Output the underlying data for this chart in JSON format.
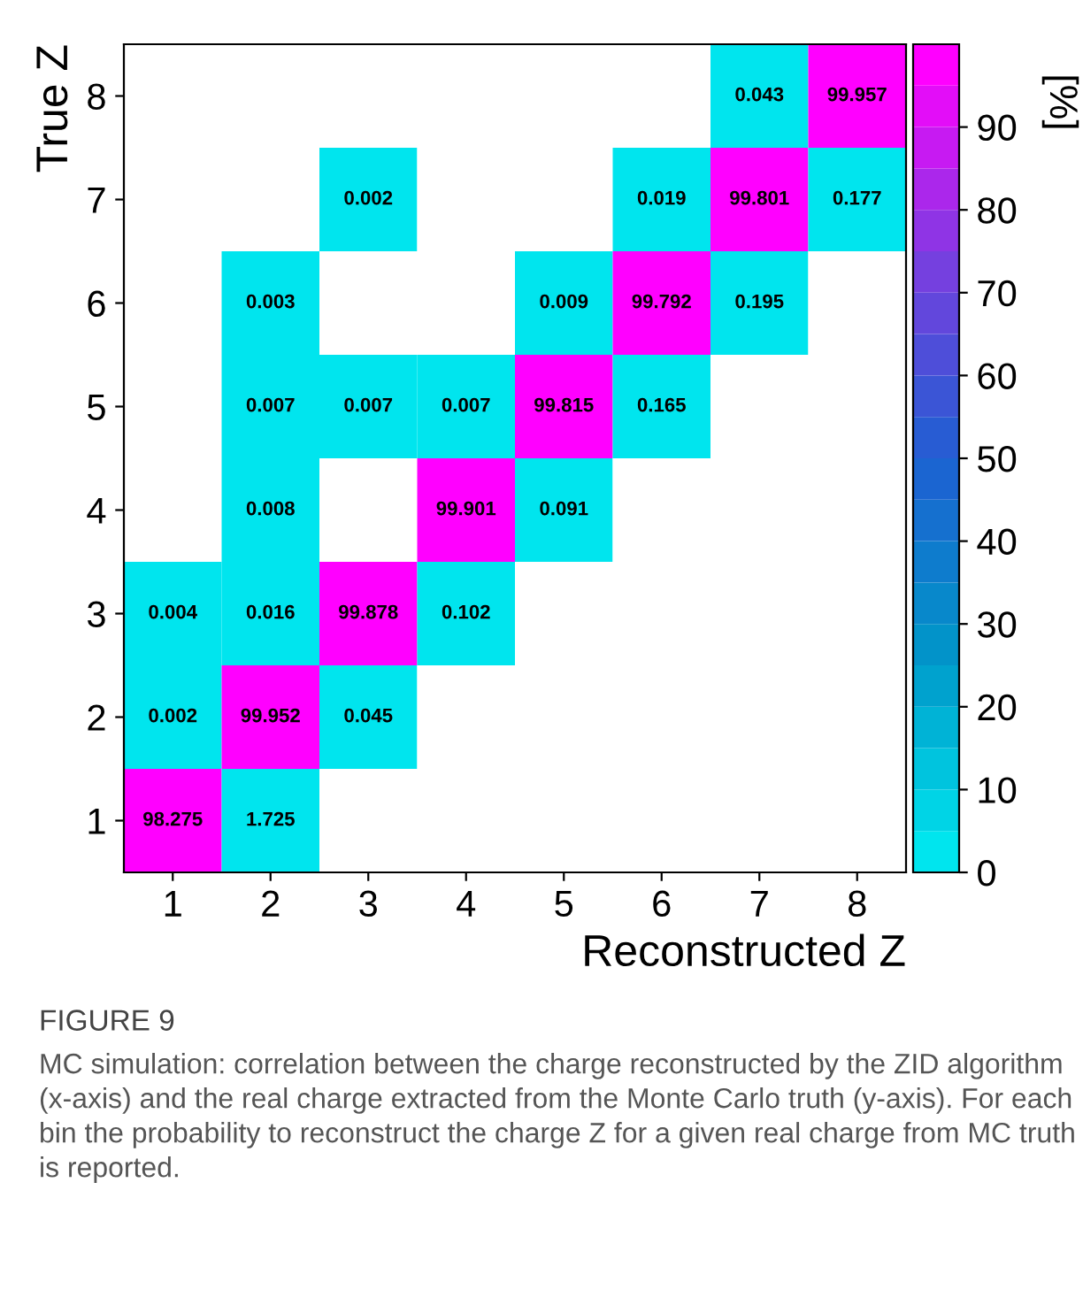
{
  "chart_data": {
    "type": "heatmap",
    "xlabel": "Reconstructed Z",
    "ylabel": "True Z",
    "clabel": "[%]",
    "categories": [
      "1",
      "2",
      "3",
      "4",
      "5",
      "6",
      "7",
      "8"
    ],
    "y_categories": [
      "8",
      "7",
      "6",
      "5",
      "4",
      "3",
      "2",
      "1"
    ],
    "cells": [
      [
        null,
        null,
        null,
        null,
        null,
        null,
        0.043,
        99.957
      ],
      [
        null,
        null,
        0.002,
        null,
        null,
        0.019,
        99.801,
        0.177
      ],
      [
        null,
        0.003,
        null,
        null,
        0.009,
        99.792,
        0.195,
        null
      ],
      [
        null,
        0.007,
        0.007,
        0.007,
        99.815,
        0.165,
        null,
        null
      ],
      [
        null,
        0.008,
        null,
        99.901,
        0.091,
        null,
        null,
        null
      ],
      [
        0.004,
        0.016,
        99.878,
        0.102,
        null,
        null,
        null,
        null
      ],
      [
        0.002,
        99.952,
        0.045,
        null,
        null,
        null,
        null,
        null
      ],
      [
        98.275,
        1.725,
        null,
        null,
        null,
        null,
        null,
        null
      ]
    ],
    "data_labels": true,
    "clim": [
      0,
      100
    ],
    "cticks": [
      0,
      10,
      20,
      30,
      40,
      50,
      60,
      70,
      80,
      90
    ],
    "colors": [
      "#00e5ee",
      "#0096c8",
      "#1e5fd2",
      "#7a3ee0",
      "#ff00ff"
    ],
    "annotations": [
      "FIGURE 9",
      "MC simulation: correlation between the charge reconstructed by the ZID algorithm (x-axis) and the real charge extracted from the Monte Carlo truth (y-axis). For each bin the probability to reconstruct the charge Z for a given real charge from MC truth is reported."
    ]
  }
}
